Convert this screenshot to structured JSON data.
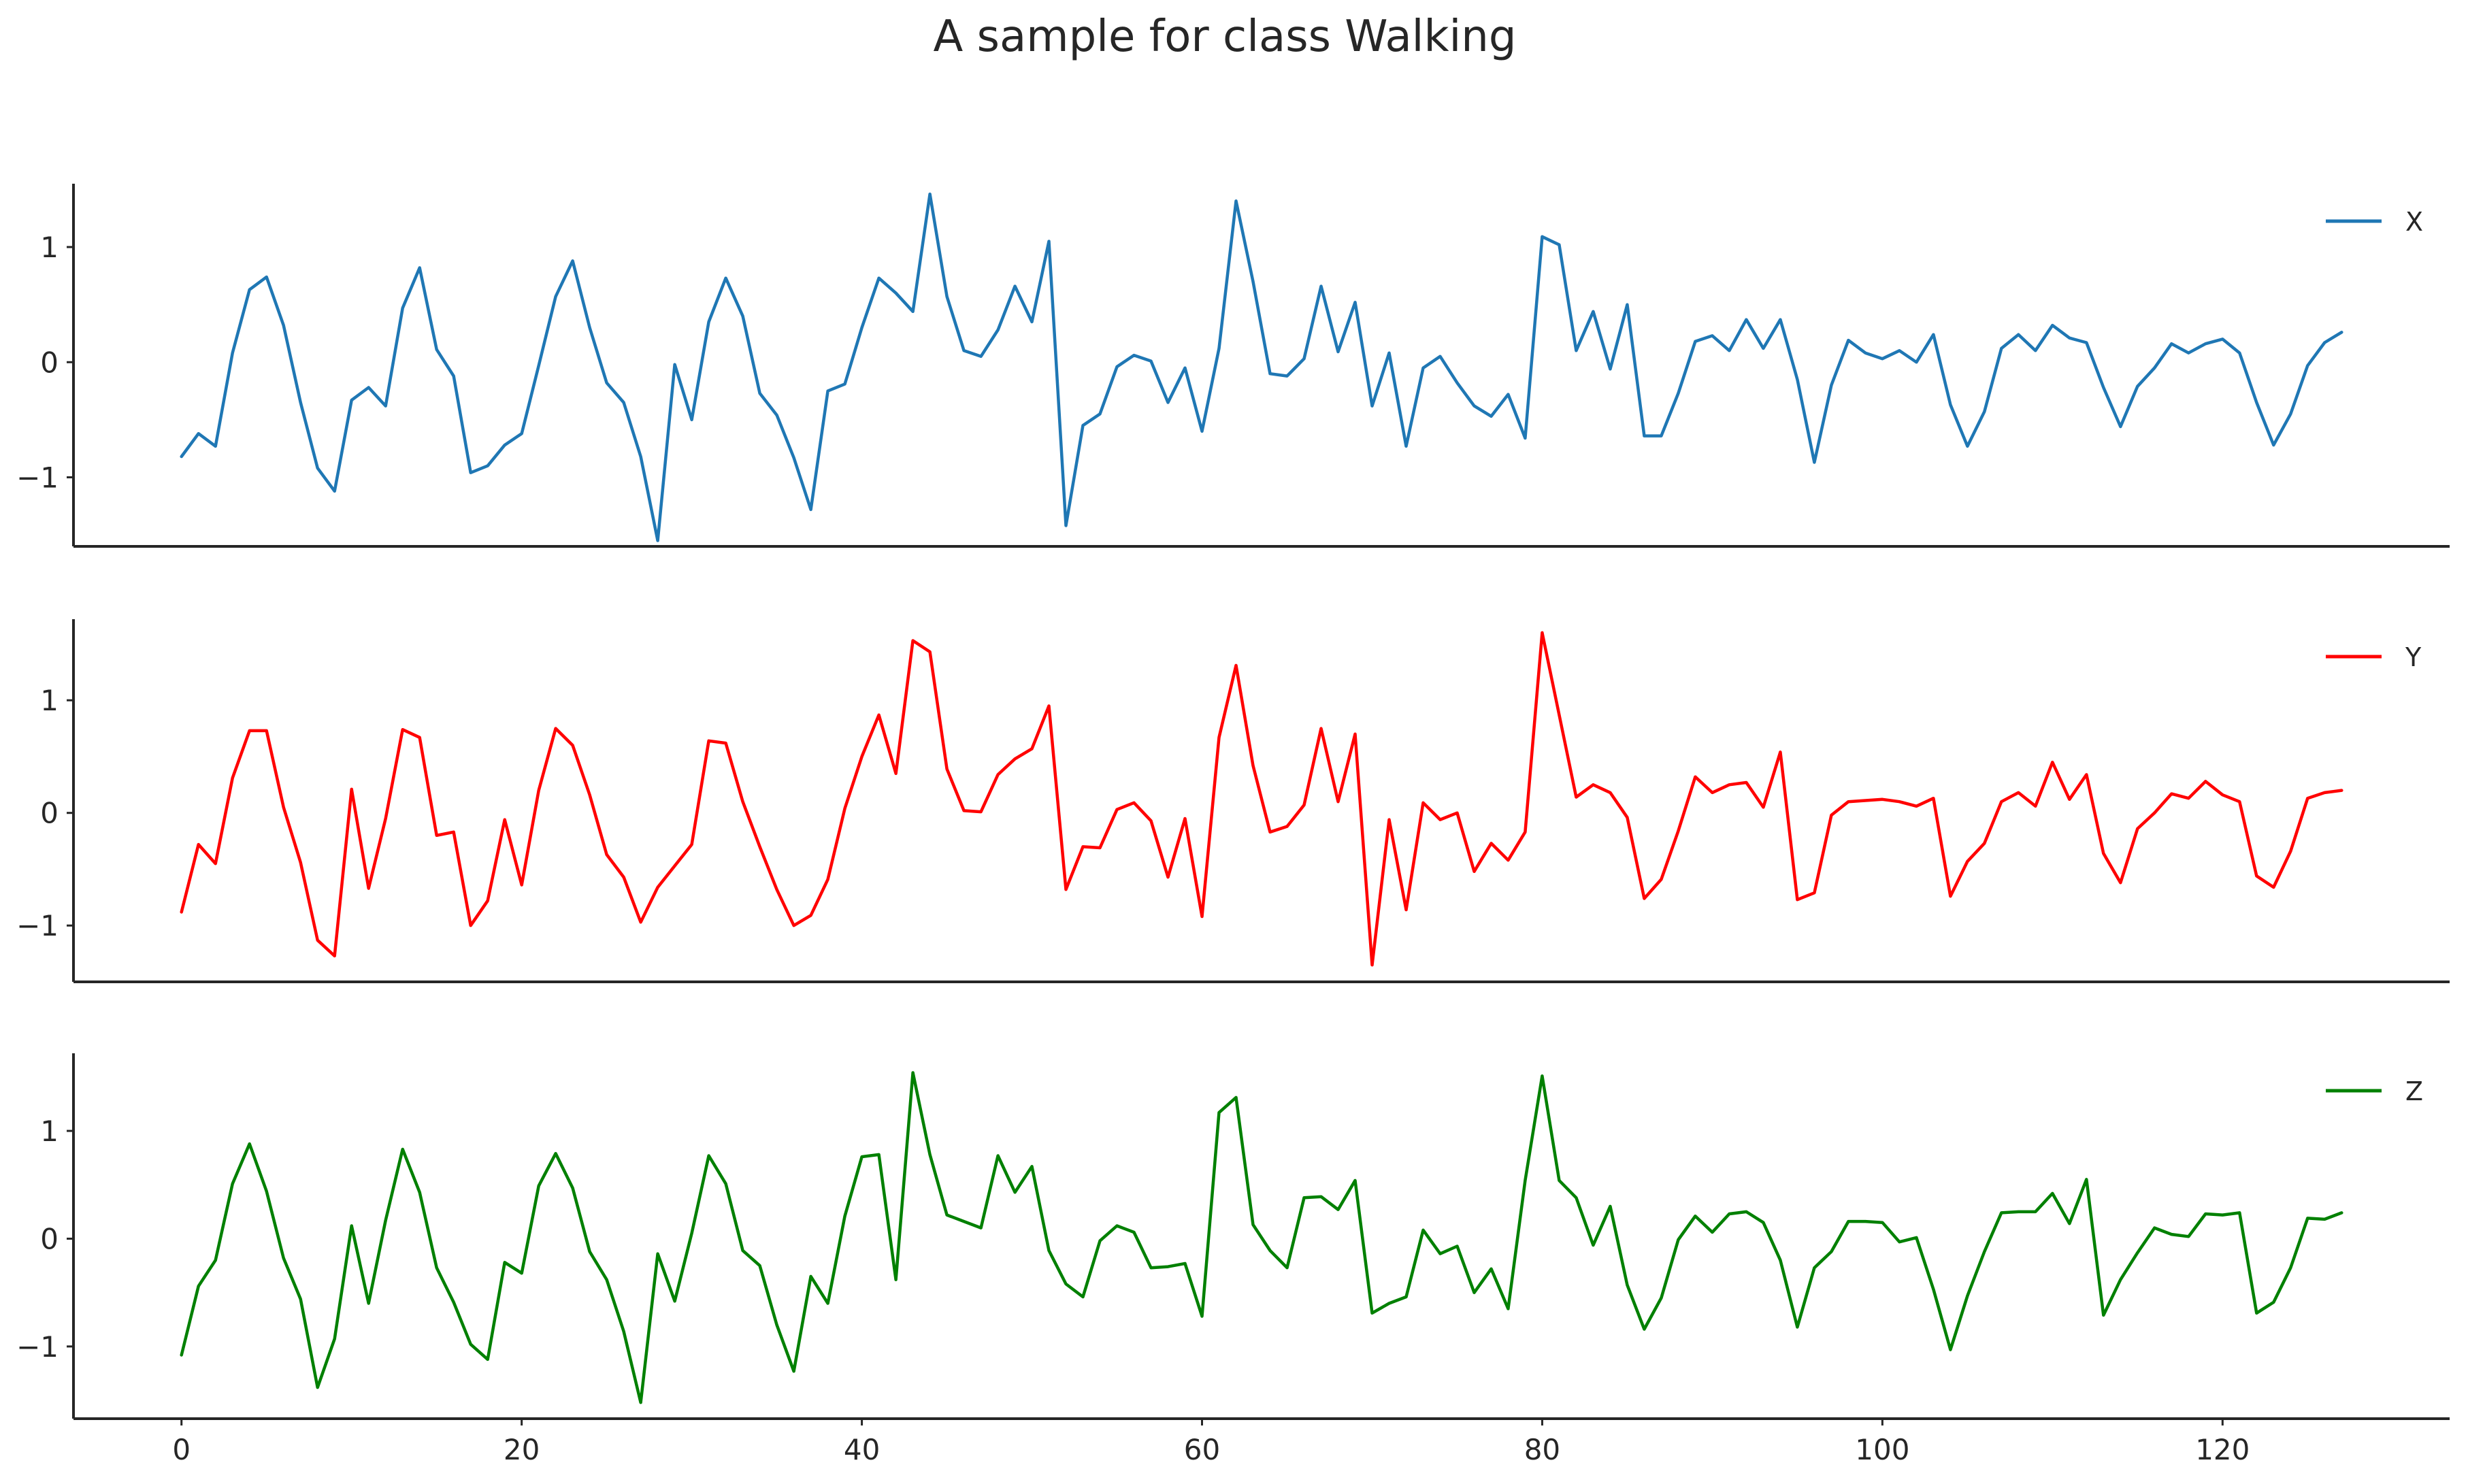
{
  "chart_data": {
    "type": "line",
    "title": "A sample for class Walking",
    "xlabel": "",
    "ylabel": "",
    "xlim": [
      -6.35,
      133.35
    ],
    "x_ticks": [
      0,
      20,
      40,
      60,
      80,
      100,
      120
    ],
    "y_ticks": [
      -1,
      0,
      1
    ],
    "grid": false,
    "legend_placement": "top-right",
    "x": [
      0,
      1,
      2,
      3,
      4,
      5,
      6,
      7,
      8,
      9,
      10,
      11,
      12,
      13,
      14,
      15,
      16,
      17,
      18,
      19,
      20,
      21,
      22,
      23,
      24,
      25,
      26,
      27,
      28,
      29,
      30,
      31,
      32,
      33,
      34,
      35,
      36,
      37,
      38,
      39,
      40,
      41,
      42,
      43,
      44,
      45,
      46,
      47,
      48,
      49,
      50,
      51,
      52,
      53,
      54,
      55,
      56,
      57,
      58,
      59,
      60,
      61,
      62,
      63,
      64,
      65,
      66,
      67,
      68,
      69,
      70,
      71,
      72,
      73,
      74,
      75,
      76,
      77,
      78,
      79,
      80,
      81,
      82,
      83,
      84,
      85,
      86,
      87,
      88,
      89,
      90,
      91,
      92,
      93,
      94,
      95,
      96,
      97,
      98,
      99,
      100,
      101,
      102,
      103,
      104,
      105,
      106,
      107,
      108,
      109,
      110,
      111,
      112,
      113,
      114,
      115,
      116,
      117,
      118,
      119,
      120,
      121,
      122,
      123,
      124,
      125,
      126,
      127
    ],
    "panels": [
      {
        "name": "X",
        "color": "#1f77b4",
        "ylim": [
          -1.6,
          1.55
        ],
        "values": [
          -0.82,
          -0.62,
          -0.73,
          0.08,
          0.63,
          0.74,
          0.32,
          -0.35,
          -0.92,
          -1.12,
          -0.33,
          -0.22,
          -0.38,
          0.47,
          0.82,
          0.11,
          -0.12,
          -0.96,
          -0.9,
          -0.72,
          -0.62,
          -0.03,
          0.57,
          0.88,
          0.3,
          -0.18,
          -0.35,
          -0.82,
          -1.55,
          -0.02,
          -0.5,
          0.35,
          0.73,
          0.4,
          -0.27,
          -0.46,
          -0.83,
          -1.28,
          -0.25,
          -0.19,
          0.3,
          0.73,
          0.6,
          0.44,
          1.46,
          0.57,
          0.1,
          0.05,
          0.28,
          0.66,
          0.35,
          1.05,
          -1.42,
          -0.55,
          -0.45,
          -0.04,
          0.06,
          0.01,
          -0.35,
          -0.05,
          -0.6,
          0.12,
          1.4,
          0.7,
          -0.1,
          -0.12,
          0.03,
          0.66,
          0.09,
          0.52,
          -0.38,
          0.08,
          -0.73,
          -0.05,
          0.05,
          -0.18,
          -0.38,
          -0.47,
          -0.28,
          -0.66,
          1.09,
          1.02,
          0.1,
          0.44,
          -0.06,
          0.5,
          -0.64,
          -0.64,
          -0.27,
          0.18,
          0.23,
          0.1,
          0.37,
          0.12,
          0.37,
          -0.15,
          -0.87,
          -0.2,
          0.19,
          0.08,
          0.03,
          0.1,
          0.0,
          0.24,
          -0.37,
          -0.73,
          -0.43,
          0.12,
          0.24,
          0.1,
          0.32,
          0.21,
          0.17,
          -0.22,
          -0.56,
          -0.21,
          -0.05,
          0.16,
          0.08,
          0.16,
          0.2,
          0.08,
          -0.35,
          -0.72,
          -0.45,
          -0.03,
          0.17,
          0.26
        ]
      },
      {
        "name": "Y",
        "color": "#ff0000",
        "ylim": [
          -1.5,
          1.72
        ],
        "values": [
          -0.88,
          -0.28,
          -0.45,
          0.31,
          0.73,
          0.73,
          0.05,
          -0.44,
          -1.13,
          -1.27,
          0.21,
          -0.67,
          -0.05,
          0.74,
          0.67,
          -0.2,
          -0.17,
          -1.0,
          -0.78,
          -0.06,
          -0.64,
          0.2,
          0.75,
          0.6,
          0.16,
          -0.37,
          -0.57,
          -0.97,
          -0.66,
          -0.47,
          -0.28,
          0.64,
          0.62,
          0.1,
          -0.3,
          -0.68,
          -1.0,
          -0.91,
          -0.59,
          0.04,
          0.5,
          0.87,
          0.35,
          1.53,
          1.43,
          0.39,
          0.02,
          0.01,
          0.34,
          0.48,
          0.57,
          0.95,
          -0.68,
          -0.3,
          -0.31,
          0.03,
          0.09,
          -0.07,
          -0.57,
          -0.05,
          -0.92,
          0.67,
          1.31,
          0.42,
          -0.17,
          -0.12,
          0.07,
          0.75,
          0.1,
          0.7,
          -1.35,
          -0.06,
          -0.86,
          0.09,
          -0.06,
          0.0,
          -0.52,
          -0.27,
          -0.42,
          -0.17,
          1.6,
          0.87,
          0.14,
          0.25,
          0.18,
          -0.04,
          -0.76,
          -0.59,
          -0.16,
          0.32,
          0.18,
          0.25,
          0.27,
          0.05,
          0.54,
          -0.77,
          -0.71,
          -0.02,
          0.1,
          0.11,
          0.12,
          0.1,
          0.06,
          0.13,
          -0.74,
          -0.43,
          -0.27,
          0.1,
          0.18,
          0.06,
          0.45,
          0.12,
          0.34,
          -0.36,
          -0.62,
          -0.14,
          0.0,
          0.17,
          0.13,
          0.28,
          0.16,
          0.1,
          -0.56,
          -0.66,
          -0.34,
          0.13,
          0.18,
          0.2
        ]
      },
      {
        "name": "Z",
        "color": "#008000",
        "ylim": [
          -1.67,
          1.72
        ],
        "values": [
          -1.08,
          -0.44,
          -0.2,
          0.51,
          0.88,
          0.44,
          -0.18,
          -0.56,
          -1.38,
          -0.93,
          0.12,
          -0.6,
          0.17,
          0.83,
          0.43,
          -0.27,
          -0.59,
          -0.98,
          -1.12,
          -0.22,
          -0.32,
          0.49,
          0.79,
          0.47,
          -0.12,
          -0.38,
          -0.86,
          -1.52,
          -0.14,
          -0.58,
          0.05,
          0.77,
          0.51,
          -0.11,
          -0.25,
          -0.8,
          -1.23,
          -0.35,
          -0.6,
          0.21,
          0.76,
          0.78,
          -0.38,
          1.54,
          0.78,
          0.22,
          0.16,
          0.1,
          0.77,
          0.43,
          0.67,
          -0.11,
          -0.42,
          -0.54,
          -0.02,
          0.12,
          0.06,
          -0.27,
          -0.26,
          -0.23,
          -0.72,
          1.17,
          1.31,
          0.13,
          -0.11,
          -0.27,
          0.38,
          0.39,
          0.27,
          0.54,
          -0.69,
          -0.6,
          -0.54,
          0.08,
          -0.14,
          -0.07,
          -0.5,
          -0.28,
          -0.65,
          0.54,
          1.51,
          0.54,
          0.38,
          -0.06,
          0.3,
          -0.43,
          -0.84,
          -0.55,
          -0.01,
          0.21,
          0.06,
          0.23,
          0.25,
          0.15,
          -0.2,
          -0.82,
          -0.27,
          -0.12,
          0.16,
          0.16,
          0.15,
          -0.03,
          0.01,
          -0.47,
          -1.03,
          -0.53,
          -0.12,
          0.24,
          0.25,
          0.25,
          0.42,
          0.14,
          0.55,
          -0.71,
          -0.38,
          -0.13,
          0.1,
          0.04,
          0.02,
          0.23,
          0.22,
          0.24,
          -0.69,
          -0.59,
          -0.27,
          0.19,
          0.18,
          0.24
        ]
      }
    ]
  }
}
